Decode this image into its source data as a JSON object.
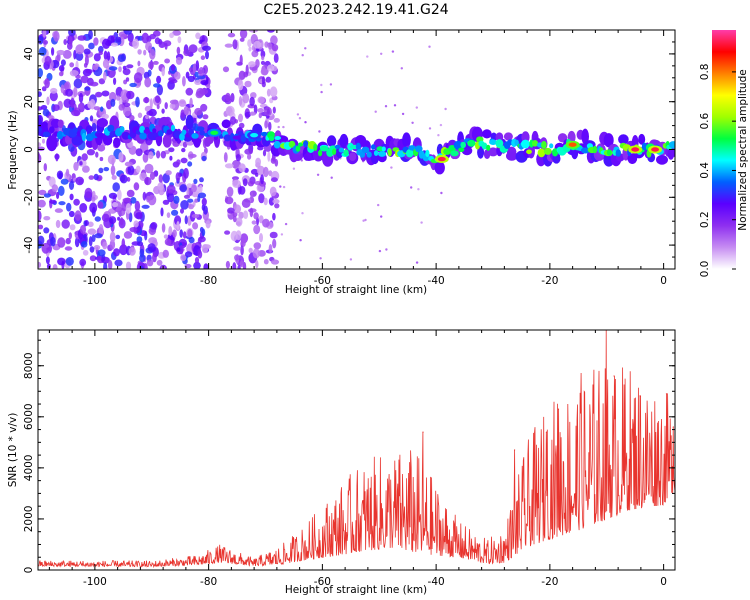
{
  "figure_title": "C2E5.2023.242.19.41.G24",
  "colors": {
    "snr_line": "#e8342e",
    "axis": "#000000",
    "colormap": [
      "#ffffff",
      "#c68cf2",
      "#8e2ff0",
      "#5a00ff",
      "#0060ff",
      "#00ffff",
      "#00ff40",
      "#a0ff00",
      "#ffff00",
      "#ff8000",
      "#ff0000",
      "#ff3caa"
    ]
  },
  "chart_data": [
    {
      "id": "spectrogram",
      "type": "heatmap",
      "xlabel": "Height of straight line (km)",
      "ylabel": "Frequency (Hz)",
      "xlim": [
        -110,
        2
      ],
      "ylim": [
        -50,
        50
      ],
      "x_ticks": [
        -100,
        -80,
        -60,
        -40,
        -20,
        0
      ],
      "x_tick_labels": [
        "-100",
        "-80",
        "-60",
        "-40",
        "-20",
        "0"
      ],
      "y_ticks": [
        -40,
        -20,
        0,
        20,
        40
      ],
      "y_tick_labels": [
        "-40",
        "-20",
        "0",
        "20",
        "40"
      ],
      "colorbar": {
        "label": "Normalized spectral amplitude",
        "range": [
          0,
          0.97
        ],
        "ticks": [
          0.0,
          0.2,
          0.4,
          0.6,
          0.8
        ],
        "tick_labels": [
          "0.0",
          "0.2",
          "0.4",
          "0.6",
          "0.8"
        ]
      },
      "signal_track": [
        {
          "x": -110,
          "freq": 7
        },
        {
          "x": -80,
          "freq": 7
        },
        {
          "x": -70,
          "freq": 5
        },
        {
          "x": -65,
          "freq": 2
        },
        {
          "x": -60,
          "freq": 0
        },
        {
          "x": -50,
          "freq": -1
        },
        {
          "x": -44,
          "freq": 0
        },
        {
          "x": -40,
          "freq": -4
        },
        {
          "x": -37,
          "freq": 0
        },
        {
          "x": -34,
          "freq": 3
        },
        {
          "x": -28,
          "freq": 2
        },
        {
          "x": -20,
          "freq": 0
        },
        {
          "x": -15,
          "freq": 2
        },
        {
          "x": -10,
          "freq": 0
        },
        {
          "x": -5,
          "freq": 0
        },
        {
          "x": 0,
          "freq": 0
        },
        {
          "x": 2,
          "freq": 2
        }
      ],
      "hot_spots": [
        {
          "x": -79,
          "freq": 7,
          "amplitude": 0.55
        },
        {
          "x": -72,
          "freq": 6,
          "amplitude": 0.45
        },
        {
          "x": -39,
          "freq": -4,
          "amplitude": 0.95
        },
        {
          "x": -16,
          "freq": 2,
          "amplitude": 0.85
        },
        {
          "x": -5,
          "freq": 0,
          "amplitude": 0.95
        },
        {
          "x": -1.5,
          "freq": 0,
          "amplitude": 0.95
        }
      ],
      "noise_regions": [
        {
          "x_from": -110,
          "x_to": -80,
          "amplitude": 0.28
        },
        {
          "x_from": -77,
          "x_to": -68,
          "amplitude": 0.2
        }
      ]
    },
    {
      "id": "snr",
      "type": "line",
      "xlabel": "Height of straight line (km)",
      "ylabel": "SNR (10 * v/v)",
      "xlim": [
        -110,
        2
      ],
      "ylim": [
        0,
        9400
      ],
      "x_ticks": [
        -100,
        -80,
        -60,
        -40,
        -20,
        0
      ],
      "x_tick_labels": [
        "-100",
        "-80",
        "-60",
        "-40",
        "-20",
        "0"
      ],
      "y_ticks": [
        0,
        2000,
        4000,
        6000,
        8000
      ],
      "y_tick_labels": [
        "0",
        "2000",
        "4000",
        "6000",
        "8000"
      ],
      "envelope": [
        {
          "x": -110,
          "base": 200,
          "amp": 150
        },
        {
          "x": -90,
          "base": 180,
          "amp": 150
        },
        {
          "x": -82,
          "base": 280,
          "amp": 250
        },
        {
          "x": -78,
          "base": 450,
          "amp": 450
        },
        {
          "x": -72,
          "base": 220,
          "amp": 200
        },
        {
          "x": -67,
          "base": 400,
          "amp": 500
        },
        {
          "x": -63,
          "base": 700,
          "amp": 900
        },
        {
          "x": -58,
          "base": 1100,
          "amp": 1600
        },
        {
          "x": -53,
          "base": 1500,
          "amp": 2200
        },
        {
          "x": -48,
          "base": 1700,
          "amp": 2400
        },
        {
          "x": -44,
          "base": 1600,
          "amp": 2600
        },
        {
          "x": -40,
          "base": 1200,
          "amp": 1800
        },
        {
          "x": -36,
          "base": 800,
          "amp": 900
        },
        {
          "x": -31,
          "base": 450,
          "amp": 600
        },
        {
          "x": -28,
          "base": 600,
          "amp": 900
        },
        {
          "x": -24,
          "base": 1800,
          "amp": 2600
        },
        {
          "x": -20,
          "base": 2400,
          "amp": 3400
        },
        {
          "x": -16,
          "base": 2800,
          "amp": 3800
        },
        {
          "x": -12,
          "base": 3200,
          "amp": 4000
        },
        {
          "x": -6,
          "base": 3600,
          "amp": 3600
        },
        {
          "x": 0,
          "base": 3600,
          "amp": 3000
        },
        {
          "x": 2,
          "base": 3800,
          "amp": 2000
        }
      ],
      "peaks": [
        {
          "x": -42.3,
          "y": 5400
        },
        {
          "x": -26.2,
          "y": 4700
        },
        {
          "x": -20.6,
          "y": 5400
        },
        {
          "x": -18.5,
          "y": 6300
        },
        {
          "x": -14.6,
          "y": 6150
        },
        {
          "x": -10.1,
          "y": 9400
        },
        {
          "x": -8.7,
          "y": 7600
        },
        {
          "x": -4.1,
          "y": 6800
        },
        {
          "x": 0.5,
          "y": 6900
        },
        {
          "x": 1.7,
          "y": 5600
        }
      ]
    }
  ]
}
